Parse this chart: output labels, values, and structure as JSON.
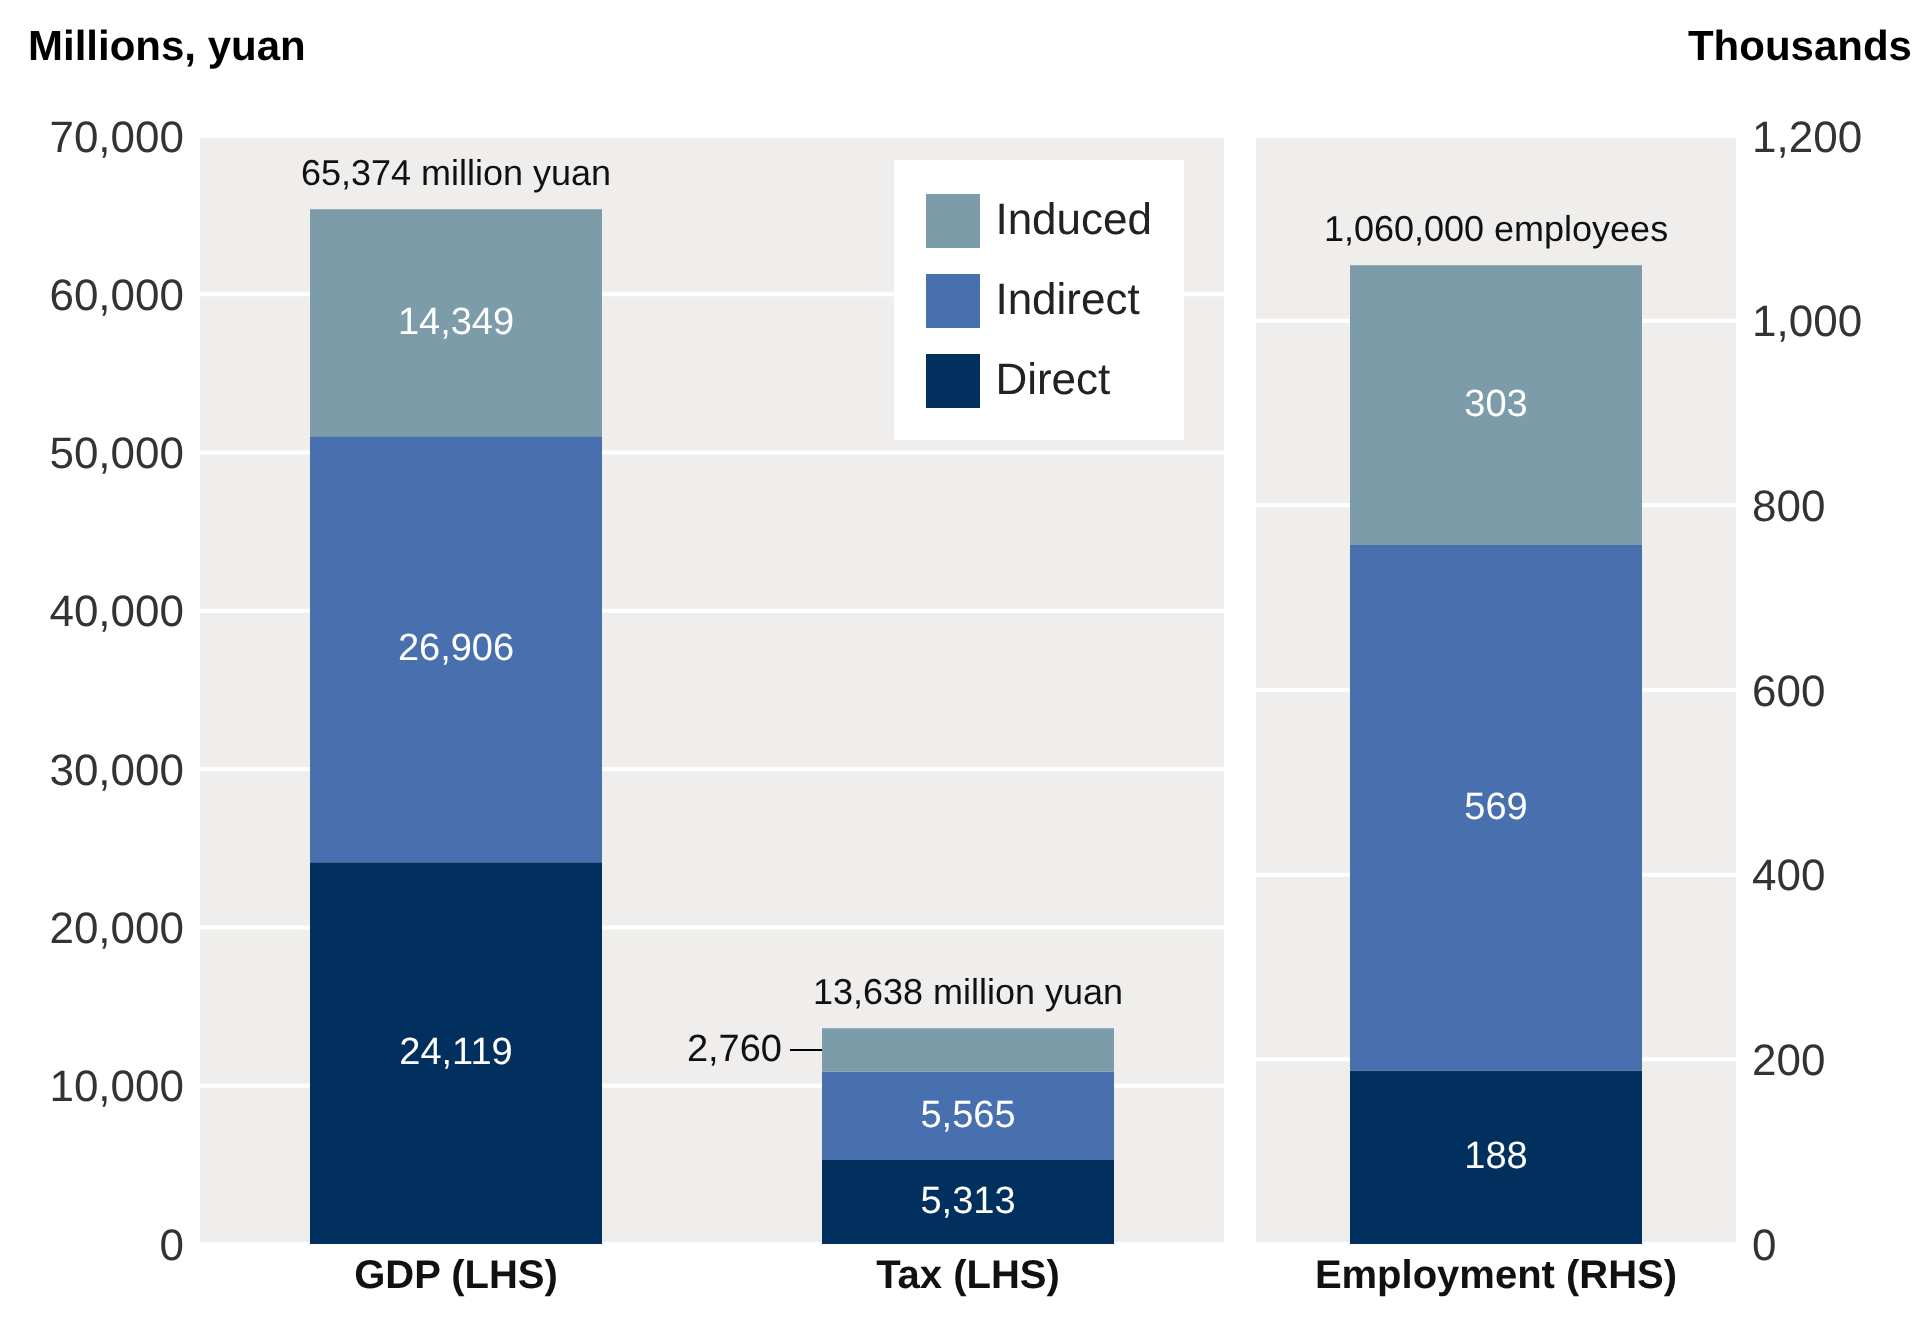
{
  "chart_data": [
    {
      "type": "bar",
      "stacked": true,
      "ylabel": "Millions, yuan",
      "categories": [
        "GDP (LHS)",
        "Tax (LHS)"
      ],
      "series": [
        {
          "name": "Direct",
          "color": "#01305f",
          "values": [
            24119,
            5313
          ],
          "value_labels": [
            "24,119",
            "5,313"
          ]
        },
        {
          "name": "Indirect",
          "color": "#486fae",
          "values": [
            26906,
            5565
          ],
          "value_labels": [
            "26,906",
            "5,565"
          ]
        },
        {
          "name": "Induced",
          "color": "#7b9ca8",
          "values": [
            14349,
            2760
          ],
          "value_labels": [
            "14,349",
            "2,760"
          ]
        }
      ],
      "ylim": [
        0,
        70000
      ],
      "yticks": [
        0,
        {
          "value": 10000,
          "label": "10,000"
        },
        {
          "value": 20000,
          "label": "20,000"
        },
        {
          "value": 30000,
          "label": "30,000"
        },
        {
          "value": 40000,
          "label": "40,000"
        },
        {
          "value": 50000,
          "label": "50,000"
        },
        {
          "value": 60000,
          "label": "60,000"
        },
        {
          "value": 70000,
          "label": "70,000"
        }
      ],
      "grid": "y",
      "legend": "top right",
      "totals": [
        "65,374 million yuan",
        "13,638 million yuan"
      ]
    },
    {
      "type": "bar",
      "stacked": true,
      "y2label": "Thousands",
      "categories": [
        "Employment (RHS)"
      ],
      "series": [
        {
          "color": "#01305f",
          "values": [
            188
          ],
          "axis": "y2"
        },
        {
          "color": "#486fae",
          "values": [
            569
          ],
          "axis": "y2"
        },
        {
          "color": "#7b9ca8",
          "values": [
            303
          ],
          "axis": "y2"
        }
      ],
      "y2lim": [
        0,
        1200
      ],
      "y2ticks": [
        0,
        200,
        400,
        600,
        800,
        {
          "value": 1000,
          "label": "1,000"
        },
        {
          "value": 1200,
          "label": "1,200"
        }
      ],
      "grid": "y",
      "data_labels": true,
      "totals": [
        "1,060,000 employees"
      ]
    }
  ]
}
